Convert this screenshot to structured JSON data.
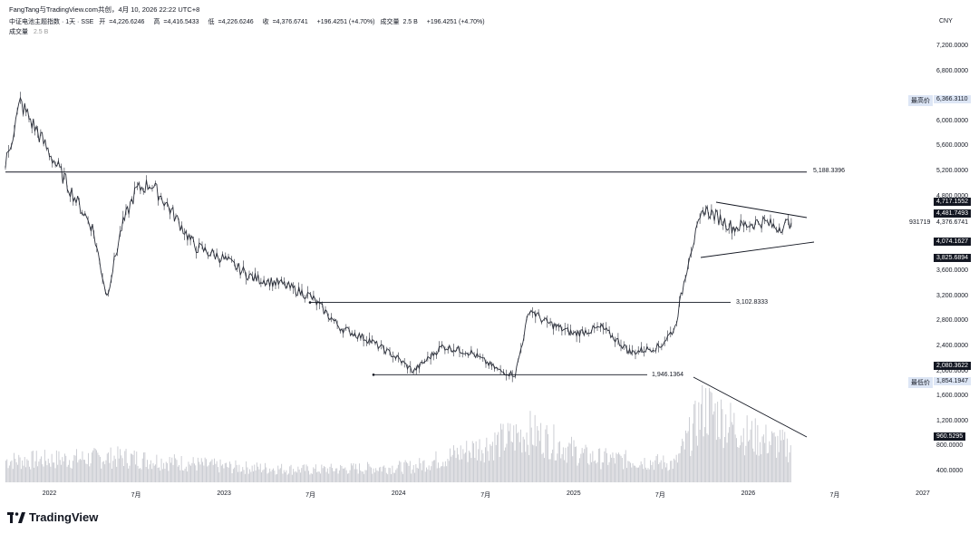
{
  "header": {
    "publisher": "FangTang与TradingView.com共创，4月 10, 2026 22:22 UTC+8",
    "symbol": "中证电池主题指数 · 1天 · SSE",
    "open_label": "开",
    "open": "4,226.6246",
    "high_label": "高",
    "high": "4,416.5433",
    "low_label": "低",
    "low": "4,226.6246",
    "close_label": "收",
    "close": "4,376.6741",
    "change": "+196.4251 (+4.70%)",
    "volume_label_inline": "成交量",
    "volume_inline": "2.5 B",
    "change2": "+196.4251 (+4.70%)"
  },
  "volume_legend": {
    "label": "成交量",
    "value": "2.5 B"
  },
  "currency": "CNY",
  "y_ticks": [
    "7,200.0000",
    "6,800.0000",
    "6,000.0000",
    "5,600.0000",
    "5,200.0000",
    "4,800.0000",
    "3,600.0000",
    "3,200.0000",
    "2,800.0000",
    "2,400.0000",
    "2,000.0000",
    "1,600.0000",
    "1,200.0000",
    "800.0000",
    "400.0000"
  ],
  "badges": {
    "high_tag": "最高价",
    "high_value": "6,366.3110",
    "low_tag": "最低价",
    "low_value": "1,854.1947",
    "b1": "4,717.1552",
    "b2": "4,481.7493",
    "close_side": "931719",
    "close_value": "4,376.6741",
    "b3": "4,074.1627",
    "b4": "3,825.6894",
    "b5": "2,080.3622",
    "b6": "960.5295"
  },
  "levels": {
    "l1": "5,188.3396",
    "l2": "3,102.8333",
    "l3": "1,946.1364"
  },
  "x_ticks": [
    "2022",
    "7月",
    "2023",
    "7月",
    "2024",
    "7月",
    "2025",
    "7月",
    "2026",
    "7月",
    "2027"
  ],
  "brand": "TradingView",
  "colors": {
    "candle": "#2a2e39",
    "line": "#131722",
    "volume": "#c7c9cf",
    "badge_dark": "#131722",
    "badge_light": "#dde6f5"
  },
  "chart_data": {
    "type": "line",
    "series": [
      {
        "x": [
          "2021-10",
          "2021-11",
          "2022-01",
          "2022-03",
          "2022-04",
          "2022-05",
          "2022-06",
          "2022-07",
          "2022-08",
          "2022-09",
          "2022-11",
          "2023-01",
          "2023-03",
          "2023-05",
          "2023-07",
          "2023-09",
          "2023-11",
          "2024-01",
          "2024-02",
          "2024-04",
          "2024-06",
          "2024-08",
          "2024-09",
          "2024-10",
          "2024-11",
          "2025-01",
          "2025-03",
          "2025-04",
          "2025-05",
          "2025-07",
          "2025-08",
          "2025-09",
          "2025-10",
          "2025-12",
          "2026-02",
          "2026-03",
          "2026-04"
        ],
        "values": [
          5300,
          6300,
          5500,
          4700,
          4300,
          3200,
          4300,
          4900,
          5000,
          4700,
          4000,
          3800,
          3500,
          3400,
          3200,
          2700,
          2500,
          2200,
          2000,
          2400,
          2300,
          2000,
          1950,
          3000,
          2800,
          2600,
          2700,
          2500,
          2300,
          2400,
          2700,
          3900,
          4600,
          4300,
          4400,
          4300,
          4376.67
        ]
      }
    ],
    "volume": {
      "x": [
        "2021-11",
        "2022-06",
        "2023-01",
        "2023-07",
        "2024-02",
        "2024-10",
        "2025-02",
        "2025-08",
        "2025-10",
        "2026-01",
        "2026-04"
      ],
      "values": [
        0.7,
        0.8,
        0.5,
        0.4,
        0.5,
        1.6,
        0.8,
        0.6,
        2.4,
        1.5,
        1.1
      ]
    },
    "levels": [
      5188.3396,
      3102.8333,
      1946.1364
    ],
    "ylim": [
      200,
      7400
    ],
    "highest": 6366.311,
    "lowest": 1854.1947,
    "close": 4376.6741
  }
}
